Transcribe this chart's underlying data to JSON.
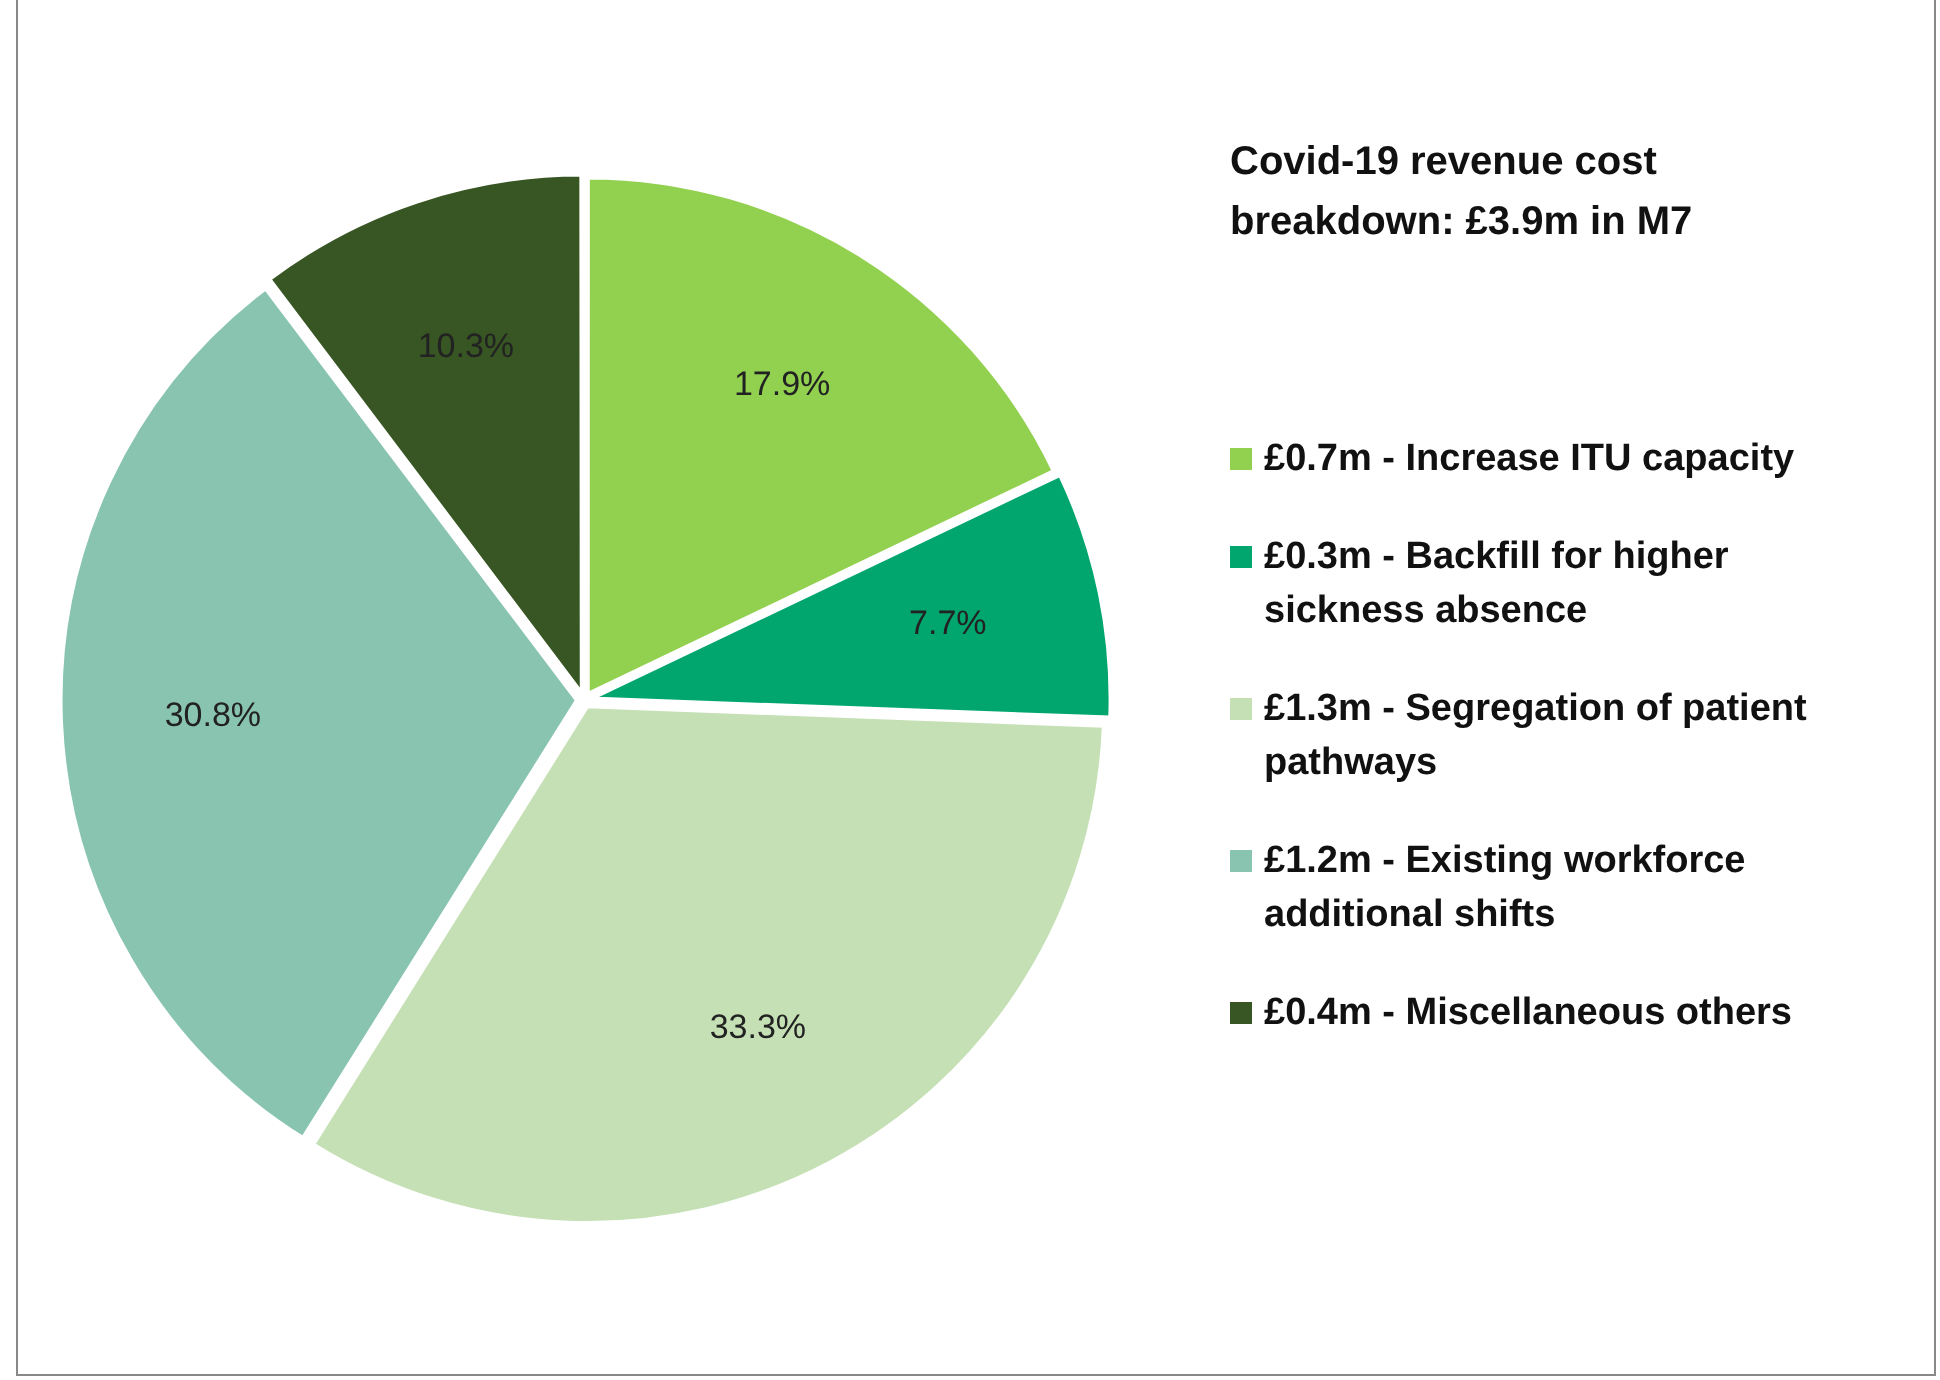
{
  "chart_data": {
    "type": "pie",
    "title": "Covid-19 revenue cost breakdown: £3.9m in M7",
    "categories": [
      "£0.7m - Increase ITU capacity",
      "£0.3m - Backfill for higher sickness absence",
      "£1.3m - Segregation of patient pathways",
      "£1.2m - Existing workforce additional shifts",
      "£0.4m - Miscellaneous others"
    ],
    "values": [
      17.9,
      7.7,
      33.3,
      30.8,
      10.3
    ],
    "value_labels": [
      "17.9%",
      "7.7%",
      "33.3%",
      "30.8%",
      "10.3%"
    ],
    "colors": [
      "#92d050",
      "#00a66e",
      "#c5e0b4",
      "#88c4b0",
      "#375623"
    ],
    "legend": "right"
  }
}
